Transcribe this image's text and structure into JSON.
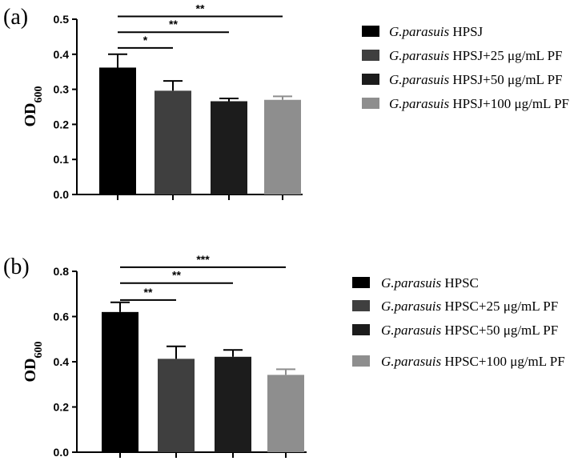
{
  "chart_data": [
    {
      "type": "bar",
      "panel_label": "(a)",
      "ylabel": "OD",
      "ylabel_sub": "600",
      "ylim": [
        0,
        0.5
      ],
      "yticks": [
        "0.0",
        "0.1",
        "0.2",
        "0.3",
        "0.4",
        "0.5"
      ],
      "ytick_values": [
        0,
        0.1,
        0.2,
        0.3,
        0.4,
        0.5
      ],
      "categories": [
        "HPSJ",
        "HPSJ+25 μg/mL PF",
        "HPSJ+50 μg/mL PF",
        "HPSJ+100 μg/mL PF"
      ],
      "values": [
        0.362,
        0.296,
        0.266,
        0.27
      ],
      "errors": [
        0.038,
        0.028,
        0.008,
        0.01
      ],
      "colors": [
        "#000000",
        "#3f3f3f",
        "#1c1c1c",
        "#8e8e8e"
      ],
      "significance": [
        {
          "from": 0,
          "to": 1,
          "label": "*",
          "y": 0.418
        },
        {
          "from": 0,
          "to": 2,
          "label": "**",
          "y": 0.463
        },
        {
          "from": 0,
          "to": 3,
          "label": "**",
          "y": 0.508
        }
      ],
      "legend": [
        {
          "italic": "G.parasuis",
          "text": "HPSJ"
        },
        {
          "italic": "G.parasuis",
          "text": "HPSJ+25 μg/mL PF"
        },
        {
          "italic": "G.parasuis",
          "text": "HPSJ+50 μg/mL PF"
        },
        {
          "italic": "G.parasuis",
          "text": "HPSJ+100 μg/mL PF"
        }
      ]
    },
    {
      "type": "bar",
      "panel_label": "(b)",
      "ylabel": "OD",
      "ylabel_sub": "600",
      "ylim": [
        0,
        0.8
      ],
      "yticks": [
        "0.0",
        "0.2",
        "0.4",
        "0.6",
        "0.8"
      ],
      "ytick_values": [
        0,
        0.2,
        0.4,
        0.6,
        0.8
      ],
      "categories": [
        "HPSC",
        "HPSC+25 μg/mL PF",
        "HPSC+50 μg/mL PF",
        "HPSC+100 μg/mL PF"
      ],
      "values": [
        0.62,
        0.413,
        0.422,
        0.342
      ],
      "errors": [
        0.043,
        0.055,
        0.03,
        0.025
      ],
      "colors": [
        "#000000",
        "#3f3f3f",
        "#1c1c1c",
        "#8e8e8e"
      ],
      "significance": [
        {
          "from": 0,
          "to": 1,
          "label": "**",
          "y": 0.673
        },
        {
          "from": 0,
          "to": 2,
          "label": "**",
          "y": 0.748
        },
        {
          "from": 0,
          "to": 3,
          "label": "***",
          "y": 0.818
        }
      ],
      "legend": [
        {
          "italic": "G.parasuis",
          "text": "HPSC"
        },
        {
          "italic": "G.parasuis",
          "text": "HPSC+25 μg/mL PF"
        },
        {
          "italic": "G.parasuis",
          "text": "HPSC+50 μg/mL PF"
        },
        {
          "italic": "G.parasuis",
          "text": "HPSC+100 μg/mL PF"
        }
      ]
    }
  ]
}
